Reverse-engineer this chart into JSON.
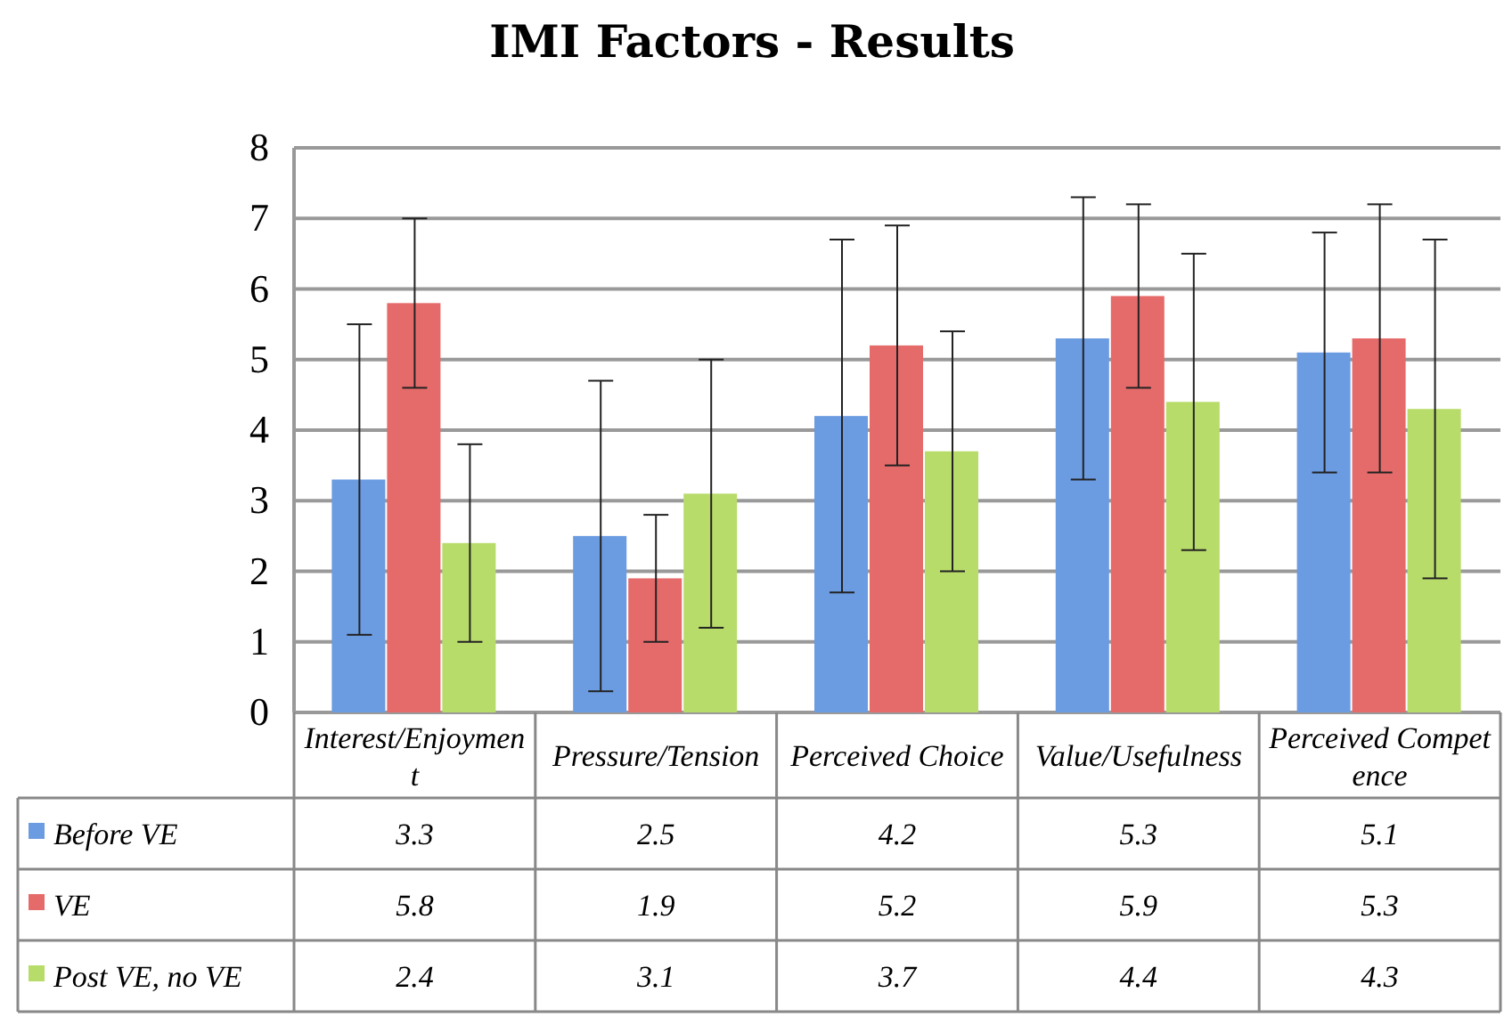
{
  "chart_data": {
    "type": "bar",
    "title": "IMI Factors - Results",
    "categories": [
      "Interest/Enjoyment",
      "Pressure/Tension",
      "Perceived Choice",
      "Value/Usefulness",
      "Perceived Competence"
    ],
    "series": [
      {
        "name": "Before VE",
        "color": "#6b9be0",
        "values": [
          3.3,
          2.5,
          4.2,
          5.3,
          5.1
        ],
        "errors": [
          2.2,
          2.2,
          2.5,
          2.0,
          1.7
        ]
      },
      {
        "name": "VE",
        "color": "#e56b6b",
        "values": [
          5.8,
          1.9,
          5.2,
          5.9,
          5.3
        ],
        "errors": [
          1.2,
          0.9,
          1.7,
          1.3,
          1.9
        ]
      },
      {
        "name": "Post VE, no VE",
        "color": "#b8dc6a",
        "values": [
          2.4,
          3.1,
          3.7,
          4.4,
          4.3
        ],
        "errors": [
          1.4,
          1.9,
          1.7,
          2.1,
          2.4
        ]
      }
    ],
    "ylim": [
      0,
      8
    ],
    "yticks": [
      0,
      1,
      2,
      3,
      4,
      5,
      6,
      7,
      8
    ],
    "grid": "y",
    "data_labels": true,
    "legend": "bottom left"
  }
}
